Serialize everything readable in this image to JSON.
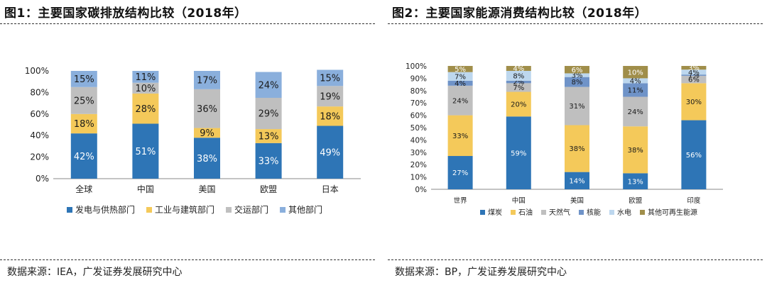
{
  "charts": [
    {
      "title": "图1：主要国家碳排放结构比较（2018年）",
      "source": "数据来源：IEA，广发证券发展研究中心",
      "chart_data": {
        "type": "bar",
        "stacked": true,
        "categories": [
          "全球",
          "中国",
          "美国",
          "欧盟",
          "日本"
        ],
        "y_ticks": [
          "0%",
          "20%",
          "40%",
          "60%",
          "80%",
          "100%"
        ],
        "ylim": [
          0,
          100
        ],
        "series": [
          {
            "name": "发电与供热部门",
            "color": "#2E75B6",
            "values": [
              42,
              51,
              38,
              33,
              49
            ],
            "labels": [
              "42%",
              "51%",
              "38%",
              "33%",
              "49%"
            ]
          },
          {
            "name": "工业与建筑部门",
            "color": "#F4C95A",
            "values": [
              18,
              28,
              9,
              13,
              18
            ],
            "labels": [
              "18%",
              "28%",
              "9%",
              "13%",
              "18%"
            ]
          },
          {
            "name": "交运部门",
            "color": "#BFBFBF",
            "values": [
              25,
              10,
              36,
              29,
              19
            ],
            "labels": [
              "25%",
              "10%",
              "36%",
              "29%",
              "19%"
            ]
          },
          {
            "name": "其他部门",
            "color": "#8AAFDC",
            "values": [
              15,
              11,
              17,
              24,
              15
            ],
            "labels": [
              "15%",
              "11%",
              "17%",
              "24%",
              "15%"
            ]
          }
        ]
      }
    },
    {
      "title": "图2：主要国家能源消费结构比较（2018年）",
      "source": "数据来源：BP，广发证券发展研究中心",
      "chart_data": {
        "type": "bar",
        "stacked": true,
        "categories": [
          "世界",
          "中国",
          "美国",
          "欧盟",
          "印度"
        ],
        "y_ticks": [
          "0%",
          "10%",
          "20%",
          "30%",
          "40%",
          "50%",
          "60%",
          "70%",
          "80%",
          "90%",
          "100%"
        ],
        "ylim": [
          0,
          100
        ],
        "series": [
          {
            "name": "煤炭",
            "color": "#2E75B6",
            "values": [
              27,
              59,
              14,
              13,
              56
            ],
            "labels": [
              "27%",
              "59%",
              "14%",
              "13%",
              "56%"
            ]
          },
          {
            "name": "石油",
            "color": "#F4C95A",
            "values": [
              33,
              20,
              38,
              38,
              30
            ],
            "labels": [
              "33%",
              "20%",
              "38%",
              "38%",
              "30%"
            ]
          },
          {
            "name": "天然气",
            "color": "#BFBFBF",
            "values": [
              24,
              7,
              31,
              24,
              6
            ],
            "labels": [
              "24%",
              "7%",
              "31%",
              "24%",
              "6%"
            ]
          },
          {
            "name": "核能",
            "color": "#6F93C8",
            "values": [
              4,
              2,
              8,
              11,
              1
            ],
            "labels": [
              "4%",
              "2%",
              "8%",
              "11%",
              "1%"
            ]
          },
          {
            "name": "水电",
            "color": "#BDD7EE",
            "values": [
              7,
              8,
              3,
              4,
              4
            ],
            "labels": [
              "7%",
              "8%",
              "3%",
              "4%",
              "4%"
            ]
          },
          {
            "name": "其他可再生能源",
            "color": "#A08E4A",
            "values": [
              5,
              4,
              6,
              10,
              3
            ],
            "labels": [
              "5%",
              "4%",
              "6%",
              "10%",
              "3%"
            ]
          }
        ]
      }
    }
  ]
}
